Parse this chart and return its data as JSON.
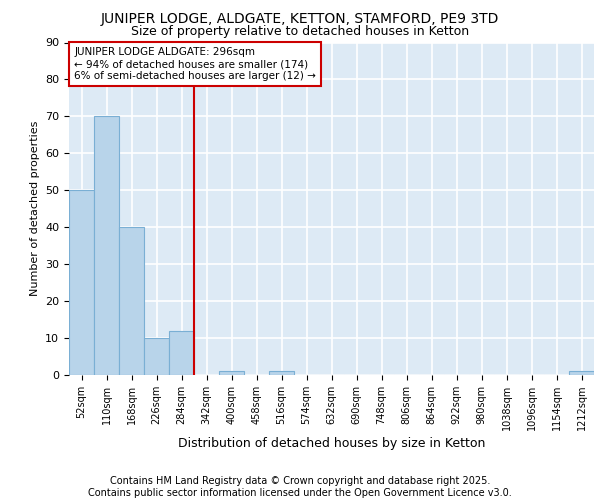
{
  "title1": "JUNIPER LODGE, ALDGATE, KETTON, STAMFORD, PE9 3TD",
  "title2": "Size of property relative to detached houses in Ketton",
  "xlabel": "Distribution of detached houses by size in Ketton",
  "ylabel": "Number of detached properties",
  "categories": [
    "52sqm",
    "110sqm",
    "168sqm",
    "226sqm",
    "284sqm",
    "342sqm",
    "400sqm",
    "458sqm",
    "516sqm",
    "574sqm",
    "632sqm",
    "690sqm",
    "748sqm",
    "806sqm",
    "864sqm",
    "922sqm",
    "980sqm",
    "1038sqm",
    "1096sqm",
    "1154sqm",
    "1212sqm"
  ],
  "values": [
    50,
    70,
    40,
    10,
    12,
    0,
    1,
    0,
    1,
    0,
    0,
    0,
    0,
    0,
    0,
    0,
    0,
    0,
    0,
    0,
    1
  ],
  "bar_color": "#b8d4ea",
  "bar_edge_color": "#7aafd4",
  "vline_color": "#cc0000",
  "annotation_text": "JUNIPER LODGE ALDGATE: 296sqm\n← 94% of detached houses are smaller (174)\n6% of semi-detached houses are larger (12) →",
  "annotation_box_color": "#cc0000",
  "annotation_bg": "white",
  "ylim": [
    0,
    90
  ],
  "yticks": [
    0,
    10,
    20,
    30,
    40,
    50,
    60,
    70,
    80,
    90
  ],
  "bg_color": "#ddeaf5",
  "grid_color": "white",
  "footer": "Contains HM Land Registry data © Crown copyright and database right 2025.\nContains public sector information licensed under the Open Government Licence v3.0.",
  "title_fontsize": 10,
  "subtitle_fontsize": 9,
  "annotation_fontsize": 7.5,
  "footer_fontsize": 7,
  "ylabel_fontsize": 8,
  "xlabel_fontsize": 9,
  "tick_fontsize": 7
}
